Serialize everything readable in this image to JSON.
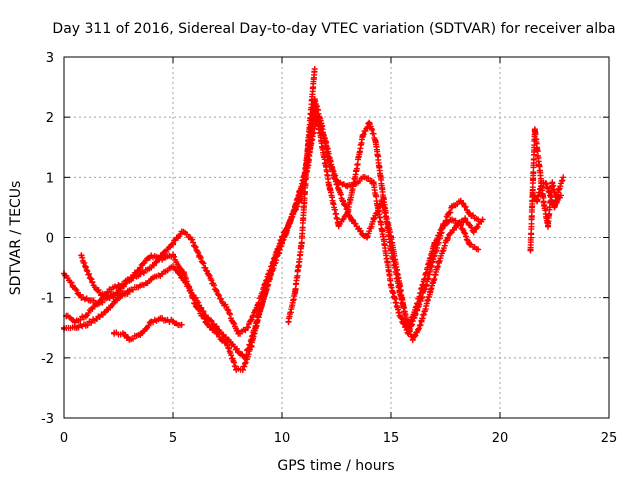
{
  "chart_data": {
    "type": "scatter",
    "title": "Day 311 of 2016, Sidereal Day-to-day VTEC variation (SDTVAR) for receiver alba",
    "xlabel": "GPS time / hours",
    "ylabel": "SDTVAR / TECUs",
    "xlim": [
      0,
      25
    ],
    "ylim": [
      -3,
      3
    ],
    "xticks": [
      0,
      5,
      10,
      15,
      20,
      25
    ],
    "yticks": [
      -3,
      -2,
      -1,
      0,
      1,
      2,
      3
    ],
    "xtick_labels": [
      "0",
      "5",
      "10",
      "15",
      "20",
      "25"
    ],
    "ytick_labels": [
      "-3",
      "-2",
      "-1",
      "0",
      "1",
      "2",
      "3"
    ],
    "grid": true,
    "marker": "+",
    "color": "#ff0000",
    "series": [
      {
        "name": "trace-1",
        "x": [
          0.0,
          0.4,
          0.8,
          1.2,
          1.6,
          2.0,
          2.5,
          3.0,
          3.5,
          4.0,
          4.5,
          5.0,
          5.5,
          6.0,
          6.5,
          7.0,
          7.5,
          7.9,
          8.2,
          8.6,
          9.0,
          9.5,
          10.0,
          10.5,
          11.0,
          11.3,
          11.5,
          11.8,
          12.2,
          12.6,
          13.0,
          13.4,
          13.8,
          14.2,
          14.6,
          15.0,
          15.4,
          15.8,
          16.2,
          16.6,
          17.0,
          17.4,
          17.8,
          18.2,
          18.6,
          19.0
        ],
        "y": [
          -0.6,
          -0.8,
          -1.0,
          -1.05,
          -1.1,
          -1.0,
          -0.9,
          -0.7,
          -0.5,
          -0.3,
          -0.35,
          -0.3,
          -0.6,
          -1.1,
          -1.4,
          -1.6,
          -1.8,
          -2.2,
          -2.2,
          -1.8,
          -1.2,
          -0.6,
          -0.1,
          0.4,
          0.9,
          1.8,
          2.3,
          1.9,
          1.2,
          0.9,
          0.85,
          0.9,
          1.0,
          0.9,
          0.1,
          -0.8,
          -1.3,
          -1.6,
          -1.2,
          -0.8,
          -0.3,
          0.2,
          0.5,
          0.6,
          0.4,
          0.3
        ]
      },
      {
        "name": "trace-2",
        "x": [
          0.1,
          0.5,
          1.0,
          1.5,
          2.0,
          2.5,
          3.0,
          3.5,
          4.0,
          4.5,
          5.0,
          5.4,
          5.8,
          6.2,
          6.6,
          7.0,
          7.5,
          8.0,
          8.4,
          8.8,
          9.2,
          9.6,
          10.0,
          10.4,
          10.8,
          11.2,
          11.5,
          11.8,
          12.2,
          12.6,
          13.0,
          13.4,
          13.7,
          14.0,
          14.3,
          14.6,
          15.0,
          15.4,
          15.8,
          16.2,
          16.6,
          17.0,
          17.4,
          17.8,
          18.2,
          18.6,
          19.0
        ],
        "y": [
          -1.3,
          -1.4,
          -1.3,
          -1.1,
          -0.9,
          -0.8,
          -0.7,
          -0.6,
          -0.5,
          -0.3,
          -0.1,
          0.1,
          0.0,
          -0.3,
          -0.6,
          -0.9,
          -1.2,
          -1.6,
          -1.5,
          -1.2,
          -0.8,
          -0.4,
          0.0,
          0.3,
          0.6,
          1.2,
          2.2,
          1.6,
          0.8,
          0.2,
          0.4,
          1.1,
          1.7,
          1.9,
          1.6,
          0.8,
          -0.2,
          -0.9,
          -1.5,
          -1.1,
          -0.6,
          -0.1,
          0.2,
          0.3,
          0.2,
          -0.1,
          -0.2
        ]
      },
      {
        "name": "trace-3",
        "x": [
          0.0,
          0.5,
          1.0,
          1.5,
          2.0,
          2.5,
          3.0,
          3.5,
          4.0,
          4.5,
          5.0,
          5.5,
          6.0,
          6.5,
          7.0,
          7.5,
          8.0,
          8.3,
          8.6,
          9.0,
          9.4,
          9.8,
          10.2,
          10.6,
          11.0,
          11.3,
          11.6,
          12.0,
          12.4,
          12.8,
          13.2,
          13.6,
          13.9,
          14.2,
          14.6,
          15.0,
          15.4,
          15.7,
          16.0,
          16.4,
          16.8,
          17.2,
          17.6,
          18.0,
          18.4,
          18.8,
          19.2
        ],
        "y": [
          -1.5,
          -1.5,
          -1.45,
          -1.35,
          -1.2,
          -1.0,
          -0.9,
          -0.8,
          -0.7,
          -0.6,
          -0.5,
          -0.7,
          -1.0,
          -1.3,
          -1.5,
          -1.7,
          -1.9,
          -2.0,
          -1.7,
          -1.2,
          -0.7,
          -0.2,
          0.1,
          0.5,
          1.0,
          1.5,
          2.0,
          1.6,
          1.0,
          0.6,
          0.3,
          0.1,
          0.0,
          0.3,
          0.6,
          0.0,
          -0.8,
          -1.4,
          -1.7,
          -1.4,
          -0.9,
          -0.4,
          0.0,
          0.2,
          0.3,
          0.1,
          0.3
        ]
      },
      {
        "name": "trace-4",
        "x": [
          2.3,
          2.7,
          3.0,
          3.5,
          4.0,
          4.5,
          5.0,
          5.4
        ],
        "y": [
          -1.6,
          -1.6,
          -1.7,
          -1.6,
          -1.4,
          -1.35,
          -1.4,
          -1.45
        ]
      },
      {
        "name": "trace-5",
        "x": [
          0.8,
          1.0,
          1.3,
          1.7,
          2.1,
          2.6,
          3.0
        ],
        "y": [
          -0.3,
          -0.5,
          -0.75,
          -0.95,
          -1.0,
          -0.95,
          -0.9
        ]
      },
      {
        "name": "trace-6",
        "x": [
          10.3,
          10.6,
          10.9,
          11.2,
          11.5
        ],
        "y": [
          -1.4,
          -0.9,
          -0.1,
          1.6,
          2.8
        ]
      },
      {
        "name": "trace-7",
        "x": [
          21.4,
          21.6,
          21.8,
          22.0,
          22.2,
          22.4,
          22.6,
          22.8
        ],
        "y": [
          -0.2,
          1.8,
          1.2,
          0.6,
          0.2,
          0.9,
          0.6,
          0.7
        ]
      },
      {
        "name": "trace-8",
        "x": [
          21.5,
          21.7,
          21.9,
          22.1,
          22.3,
          22.5,
          22.7,
          22.9
        ],
        "y": [
          0.7,
          0.6,
          0.9,
          0.9,
          0.7,
          0.5,
          0.8,
          1.0
        ]
      }
    ]
  }
}
